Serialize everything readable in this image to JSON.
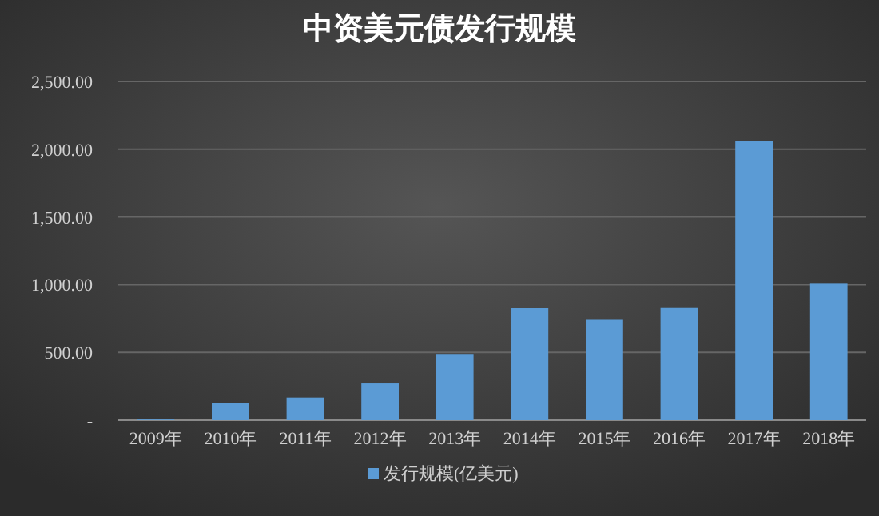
{
  "chart_data": {
    "type": "bar",
    "title": "中资美元债发行规模",
    "categories": [
      "2009年",
      "2010年",
      "2011年",
      "2012年",
      "2013年",
      "2014年",
      "2015年",
      "2016年",
      "2017年",
      "2018年"
    ],
    "series": [
      {
        "name": "发行规模(亿美元)",
        "color": "#5b9bd5",
        "values": [
          5,
          129,
          167,
          271,
          488,
          829,
          746,
          833,
          2062,
          1012
        ]
      }
    ],
    "ylim": [
      0,
      2500
    ],
    "yticks": [
      {
        "value": 0,
        "label": "-"
      },
      {
        "value": 500,
        "label": "500.00"
      },
      {
        "value": 1000,
        "label": "1,000.00"
      },
      {
        "value": 1500,
        "label": "1,500.00"
      },
      {
        "value": 2000,
        "label": "2,000.00"
      },
      {
        "value": 2500,
        "label": "2,500.00"
      }
    ],
    "grid": "y",
    "legend": "bottom"
  }
}
